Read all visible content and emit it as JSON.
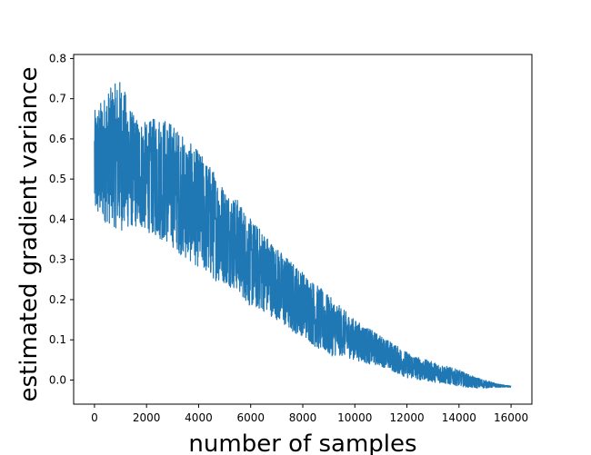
{
  "chart_data": {
    "type": "line",
    "title": "",
    "xlabel": "number of samples",
    "ylabel": "estimated gradient variance",
    "xlim": [
      -800,
      16800
    ],
    "ylim": [
      -0.06,
      0.81
    ],
    "xticks": [
      0,
      2000,
      4000,
      6000,
      8000,
      10000,
      12000,
      14000,
      16000
    ],
    "xtick_labels": [
      "0",
      "2000",
      "4000",
      "6000",
      "8000",
      "10000",
      "12000",
      "14000",
      "16000"
    ],
    "yticks": [
      0.0,
      0.1,
      0.2,
      0.3,
      0.4,
      0.5,
      0.6,
      0.7,
      0.8
    ],
    "ytick_labels": [
      "0.0",
      "0.1",
      "0.2",
      "0.3",
      "0.4",
      "0.5",
      "0.6",
      "0.7",
      "0.8"
    ],
    "grid": false,
    "line_color": "#1f77b4",
    "series": [
      {
        "x": [
          0,
          500,
          1000,
          1500,
          2000,
          2500,
          3000,
          3500,
          4000,
          4500,
          5000,
          5500,
          6000,
          6500,
          7000,
          7500,
          8000,
          8500,
          9000,
          9500,
          10000,
          10500,
          11000,
          11500,
          12000,
          12500,
          13000,
          13500,
          14000,
          14500,
          15000,
          15500,
          16000
        ],
        "upper": [
          0.67,
          0.72,
          0.75,
          0.66,
          0.64,
          0.66,
          0.64,
          0.6,
          0.57,
          0.53,
          0.48,
          0.45,
          0.4,
          0.37,
          0.33,
          0.3,
          0.27,
          0.24,
          0.21,
          0.18,
          0.15,
          0.13,
          0.11,
          0.09,
          0.07,
          0.055,
          0.045,
          0.035,
          0.025,
          0.01,
          0.0,
          -0.01,
          -0.015
        ],
        "lower": [
          0.4,
          0.39,
          0.37,
          0.38,
          0.37,
          0.35,
          0.33,
          0.3,
          0.28,
          0.25,
          0.24,
          0.22,
          0.18,
          0.17,
          0.15,
          0.12,
          0.11,
          0.08,
          0.06,
          0.06,
          0.05,
          0.04,
          0.035,
          0.02,
          0.005,
          0.0,
          -0.005,
          -0.01,
          -0.015,
          -0.02,
          -0.02,
          -0.018,
          -0.018
        ]
      }
    ]
  }
}
